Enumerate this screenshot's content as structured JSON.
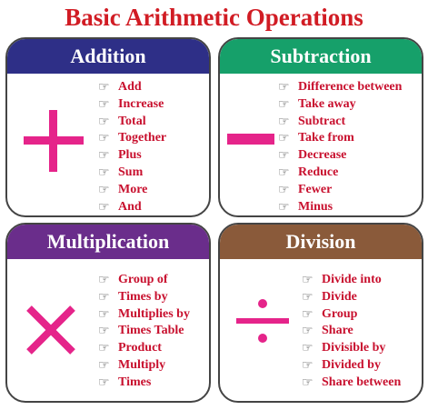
{
  "title": "Basic Arithmetic Operations",
  "colors": {
    "title": "#d11c24",
    "words": "#c8102e",
    "symbol": "#e5248a",
    "addition_header": "#2e2f87",
    "subtraction_header": "#16a06a",
    "multiplication_header": "#6a2d8b",
    "division_header": "#8a5a3a"
  },
  "bullet_icon": "pointing-hand-icon",
  "addition": {
    "header": "Addition",
    "symbol_icon": "plus-icon",
    "words": [
      "Add",
      "Increase",
      "Total",
      "Together",
      "Plus",
      "Sum",
      "More",
      "And"
    ]
  },
  "subtraction": {
    "header": "Subtraction",
    "symbol_icon": "minus-icon",
    "words": [
      "Difference between",
      "Take away",
      "Subtract",
      "Take from",
      "Decrease",
      "Reduce",
      "Fewer",
      "Minus"
    ]
  },
  "multiplication": {
    "header": "Multiplication",
    "symbol_icon": "times-icon",
    "words": [
      "Group of",
      "Times by",
      "Multiplies by",
      "Times Table",
      "Product",
      "Multiply",
      "Times"
    ]
  },
  "division": {
    "header": "Division",
    "symbol_icon": "divide-icon",
    "words": [
      "Divide into",
      "Divide",
      "Group",
      "Share",
      "Divisible by",
      "Divided by",
      "Share between"
    ]
  }
}
